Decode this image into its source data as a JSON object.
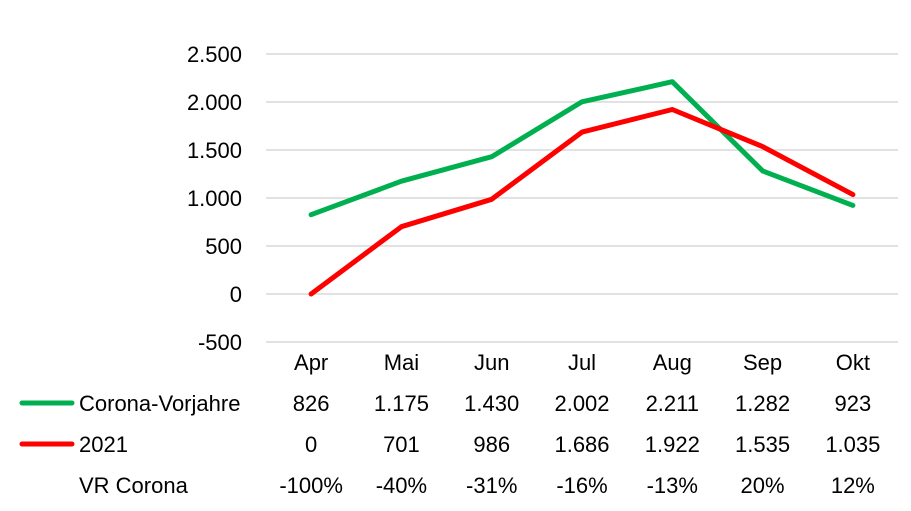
{
  "chart_data": {
    "type": "line",
    "categories": [
      "Apr",
      "Mai",
      "Jun",
      "Jul",
      "Aug",
      "Sep",
      "Okt"
    ],
    "ylim": [
      -500,
      2500
    ],
    "yticks": [
      -500,
      0,
      500,
      1000,
      1500,
      2000,
      2500
    ],
    "ytick_labels": [
      "-500",
      "0",
      "500",
      "1.000",
      "1.500",
      "2.000",
      "2.500"
    ],
    "grid": true,
    "legend": "data-table",
    "series": [
      {
        "name": "Corona-Vorjahre",
        "color": "#00b050",
        "values": [
          826,
          1175,
          1430,
          2002,
          2211,
          1282,
          923
        ],
        "labels": [
          "826",
          "1.175",
          "1.430",
          "2.002",
          "2.211",
          "1.282",
          "923"
        ]
      },
      {
        "name": "2021",
        "color": "#ff0000",
        "values": [
          0,
          701,
          986,
          1686,
          1922,
          1535,
          1035
        ],
        "labels": [
          "0",
          "701",
          "986",
          "1.686",
          "1.922",
          "1.535",
          "1.035"
        ]
      }
    ],
    "extra_rows": [
      {
        "name": "VR Corona",
        "labels": [
          "-100%",
          "-40%",
          "-31%",
          "-16%",
          "-13%",
          "20%",
          "12%"
        ]
      }
    ]
  }
}
